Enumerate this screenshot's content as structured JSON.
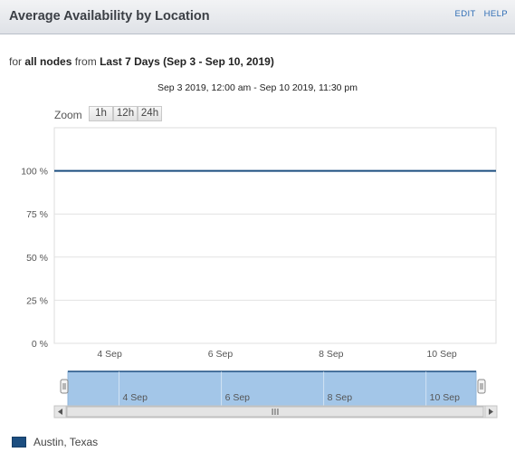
{
  "header": {
    "title": "Average Availability by Location",
    "edit_label": "EDIT",
    "help_label": "HELP"
  },
  "subtitle": {
    "prefix": "for",
    "nodes": "all nodes",
    "middle": "from",
    "period": "Last 7 Days (Sep 3 - Sep 10, 2019)"
  },
  "range_text": "Sep 3 2019, 12:00 am - Sep 10 2019, 11:30 pm",
  "zoom": {
    "label": "Zoom",
    "buttons": [
      "1h",
      "12h",
      "24h"
    ]
  },
  "colors": {
    "series": "#1c4e80",
    "navigator_fill": "#a3c6e8",
    "grid": "#e2e2e2"
  },
  "chart_data": {
    "type": "line",
    "title": "Average Availability by Location",
    "xlabel": "",
    "ylabel": "",
    "x_ticks": [
      "4 Sep",
      "6 Sep",
      "8 Sep",
      "10 Sep"
    ],
    "y_ticks": [
      "0 %",
      "25 %",
      "50 %",
      "75 %",
      "100 %"
    ],
    "ylim": [
      0,
      125
    ],
    "xlim": [
      "2019-09-03 00:00",
      "2019-09-10 23:30"
    ],
    "grid": true,
    "series": [
      {
        "name": "Austin, Texas",
        "color": "#1c4e80",
        "x": [
          "2019-09-03 00:00",
          "2019-09-10 23:30"
        ],
        "values": [
          100,
          100
        ]
      }
    ]
  },
  "navigator": {
    "ticks": [
      "4 Sep",
      "6 Sep",
      "8 Sep",
      "10 Sep"
    ],
    "scrollbar_grip": "III"
  },
  "legend": {
    "label": "Austin, Texas",
    "legend_position": "bottom-left"
  }
}
